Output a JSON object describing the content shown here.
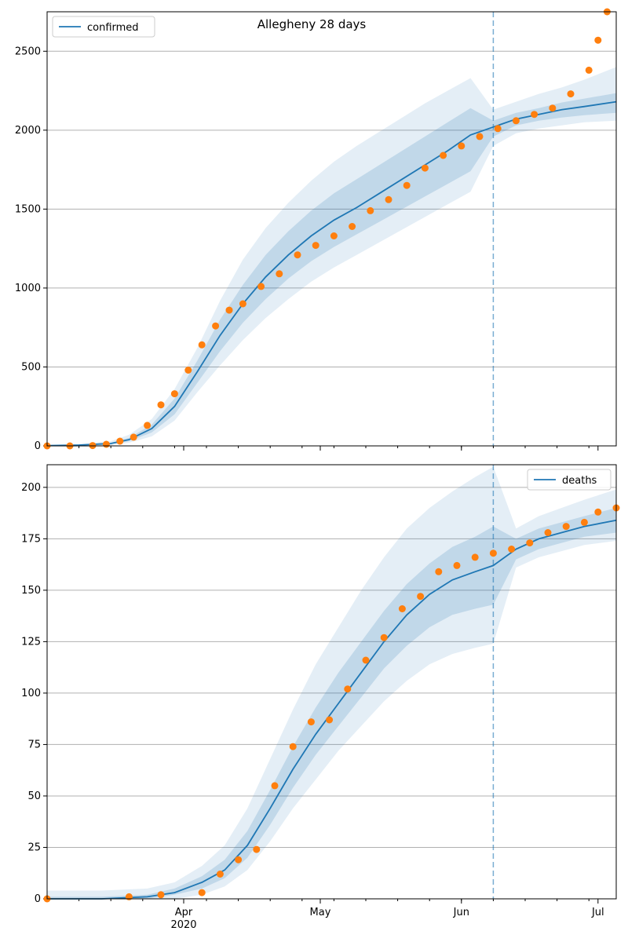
{
  "title": "Allegheny 28 days",
  "colors": {
    "model": "#1f77b4",
    "observed": "#ff7f0e",
    "band": "#1f77b4",
    "grid": "#b0b0b0"
  },
  "chart_data": [
    {
      "type": "line",
      "legend": {
        "label": "confirmed",
        "placement": "top-left"
      },
      "xlim": [
        "2020-03-02",
        "2020-07-05"
      ],
      "ylim": [
        0,
        2750
      ],
      "yticks": [
        0,
        500,
        1000,
        1500,
        2000,
        2500
      ],
      "grid": "y",
      "forecast_start": "2020-06-08",
      "model": {
        "name": "confirmed",
        "x": [
          "2020-03-02",
          "2020-03-09",
          "2020-03-16",
          "2020-03-20",
          "2020-03-25",
          "2020-03-30",
          "2020-04-04",
          "2020-04-09",
          "2020-04-14",
          "2020-04-19",
          "2020-04-24",
          "2020-04-29",
          "2020-05-04",
          "2020-05-09",
          "2020-05-14",
          "2020-05-19",
          "2020-05-24",
          "2020-05-29",
          "2020-06-03",
          "2020-06-08",
          "2020-06-13",
          "2020-06-18",
          "2020-06-23",
          "2020-06-28",
          "2020-07-05"
        ],
        "y": [
          2,
          5,
          15,
          40,
          110,
          250,
          470,
          700,
          900,
          1070,
          1210,
          1330,
          1430,
          1510,
          1600,
          1690,
          1780,
          1870,
          1970,
          2020,
          2070,
          2100,
          2130,
          2150,
          2180
        ],
        "band_inner_lo": [
          0,
          2,
          10,
          30,
          85,
          200,
          400,
          600,
          780,
          930,
          1060,
          1170,
          1260,
          1340,
          1420,
          1500,
          1580,
          1660,
          1740,
          1960,
          2030,
          2060,
          2080,
          2095,
          2110
        ],
        "band_inner_hi": [
          4,
          8,
          20,
          50,
          135,
          300,
          540,
          800,
          1020,
          1210,
          1360,
          1490,
          1600,
          1690,
          1780,
          1870,
          1960,
          2050,
          2140,
          2060,
          2110,
          2140,
          2175,
          2200,
          2235
        ],
        "band_outer_lo": [
          0,
          0,
          5,
          20,
          60,
          160,
          340,
          510,
          670,
          810,
          930,
          1040,
          1130,
          1210,
          1290,
          1370,
          1450,
          1530,
          1610,
          1900,
          1980,
          2010,
          2030,
          2050,
          2060
        ],
        "band_outer_hi": [
          6,
          12,
          30,
          70,
          170,
          360,
          620,
          920,
          1180,
          1380,
          1540,
          1680,
          1800,
          1900,
          1990,
          2080,
          2170,
          2250,
          2330,
          2130,
          2180,
          2230,
          2270,
          2320,
          2400
        ]
      },
      "observed": {
        "name": "observed",
        "x": [
          "2020-03-02",
          "2020-03-07",
          "2020-03-12",
          "2020-03-15",
          "2020-03-18",
          "2020-03-21",
          "2020-03-24",
          "2020-03-27",
          "2020-03-30",
          "2020-04-02",
          "2020-04-05",
          "2020-04-08",
          "2020-04-11",
          "2020-04-14",
          "2020-04-18",
          "2020-04-22",
          "2020-04-26",
          "2020-04-30",
          "2020-05-04",
          "2020-05-08",
          "2020-05-12",
          "2020-05-16",
          "2020-05-20",
          "2020-05-24",
          "2020-05-28",
          "2020-06-01",
          "2020-06-05",
          "2020-06-09",
          "2020-06-13",
          "2020-06-17",
          "2020-06-21",
          "2020-06-25",
          "2020-06-29",
          "2020-07-01",
          "2020-07-03"
        ],
        "y": [
          0,
          0,
          2,
          10,
          30,
          55,
          130,
          260,
          330,
          480,
          640,
          760,
          860,
          900,
          1010,
          1090,
          1210,
          1270,
          1330,
          1390,
          1490,
          1560,
          1650,
          1760,
          1840,
          1900,
          1960,
          2010,
          2060,
          2100,
          2140,
          2230,
          2380,
          2570,
          2750
        ]
      }
    },
    {
      "type": "line",
      "legend": {
        "label": "deaths",
        "placement": "top-right"
      },
      "xlim": [
        "2020-03-02",
        "2020-07-05"
      ],
      "xticks": [
        "Apr\n2020",
        "May",
        "Jun",
        "Jul"
      ],
      "ylim": [
        0,
        211
      ],
      "yticks": [
        0,
        25,
        50,
        75,
        100,
        125,
        150,
        175,
        200
      ],
      "grid": "y",
      "forecast_start": "2020-06-08",
      "model": {
        "name": "deaths",
        "x": [
          "2020-03-02",
          "2020-03-14",
          "2020-03-24",
          "2020-03-30",
          "2020-04-05",
          "2020-04-10",
          "2020-04-15",
          "2020-04-20",
          "2020-04-25",
          "2020-04-30",
          "2020-05-05",
          "2020-05-10",
          "2020-05-15",
          "2020-05-20",
          "2020-05-25",
          "2020-05-30",
          "2020-06-04",
          "2020-06-08",
          "2020-06-13",
          "2020-06-18",
          "2020-06-23",
          "2020-06-28",
          "2020-07-05"
        ],
        "y": [
          0,
          0,
          1,
          3,
          8,
          14,
          26,
          44,
          63,
          80,
          95,
          110,
          125,
          138,
          148,
          155,
          159,
          162,
          170,
          175,
          178,
          181,
          184
        ],
        "band_inner_lo": [
          0,
          0,
          0,
          2,
          5,
          10,
          20,
          36,
          54,
          70,
          84,
          98,
          112,
          123,
          132,
          138,
          141,
          143,
          165,
          170,
          173,
          176,
          178
        ],
        "band_inner_hi": [
          1,
          1,
          2,
          5,
          11,
          19,
          33,
          53,
          74,
          93,
          110,
          125,
          140,
          153,
          163,
          171,
          176,
          181,
          175,
          180,
          183,
          186,
          190
        ],
        "band_outer_lo": [
          0,
          0,
          0,
          0,
          2,
          6,
          14,
          28,
          44,
          58,
          72,
          84,
          96,
          106,
          114,
          119,
          122,
          124,
          161,
          166,
          169,
          172,
          174
        ],
        "band_outer_hi": [
          4,
          4,
          5,
          8,
          16,
          26,
          44,
          68,
          92,
          114,
          132,
          150,
          166,
          180,
          190,
          198,
          205,
          210,
          180,
          186,
          190,
          194,
          199
        ]
      },
      "observed": {
        "name": "observed",
        "x": [
          "2020-03-02",
          "2020-03-20",
          "2020-03-27",
          "2020-04-05",
          "2020-04-09",
          "2020-04-13",
          "2020-04-17",
          "2020-04-21",
          "2020-04-25",
          "2020-04-29",
          "2020-05-03",
          "2020-05-07",
          "2020-05-11",
          "2020-05-15",
          "2020-05-19",
          "2020-05-23",
          "2020-05-27",
          "2020-05-31",
          "2020-06-04",
          "2020-06-08",
          "2020-06-12",
          "2020-06-16",
          "2020-06-20",
          "2020-06-24",
          "2020-06-28",
          "2020-07-01",
          "2020-07-05"
        ],
        "y": [
          0,
          1,
          2,
          3,
          12,
          19,
          24,
          55,
          74,
          86,
          87,
          102,
          116,
          127,
          141,
          147,
          159,
          162,
          166,
          168,
          170,
          173,
          178,
          181,
          183,
          188,
          190
        ]
      }
    }
  ]
}
